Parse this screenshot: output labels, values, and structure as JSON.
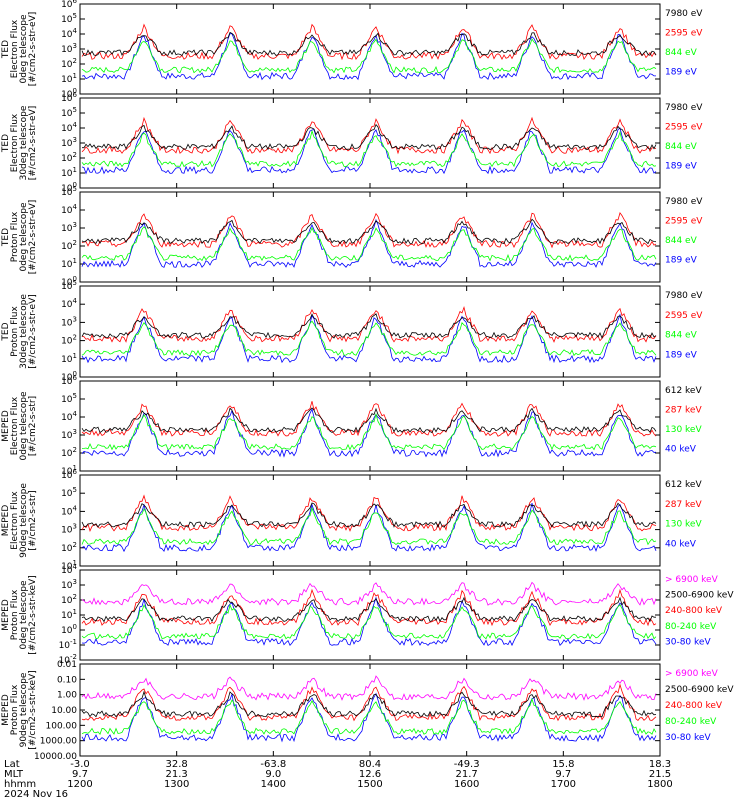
{
  "colors": {
    "blue": "#0000ff",
    "red": "#ff0000",
    "green": "#00ff00",
    "black": "#000000",
    "magenta": "#ff00ff"
  },
  "footer": {
    "rows": [
      {
        "label": "Lat",
        "values": [
          "-3.0",
          "32.8",
          "-63.8",
          "80.4",
          "-49.3",
          "15.8",
          "18.3"
        ]
      },
      {
        "label": "MLT",
        "values": [
          "9.7",
          "21.3",
          "9.0",
          "12.6",
          "21.7",
          "9.7",
          "21.5"
        ]
      },
      {
        "label": "hhmm",
        "values": [
          "1200",
          "1300",
          "1400",
          "1500",
          "1600",
          "1700",
          "1800"
        ]
      }
    ],
    "date": "2024 Nov 16"
  },
  "chart_data": [
    {
      "type": "line",
      "ylabel": [
        "TED",
        "Electron Flux",
        "0deg telescope",
        "[#/cm2-s-str-eV]"
      ],
      "y_scale": "log",
      "ylim": [
        1,
        1000000
      ],
      "yticks": [
        "10^0",
        "10^1",
        "10^2",
        "10^3",
        "10^4",
        "10^5",
        "10^6"
      ],
      "x": [
        "1200",
        "1300",
        "1400",
        "1500",
        "1600",
        "1700",
        "1800"
      ],
      "legend": [
        {
          "name": "7980 eV",
          "color": "#000000"
        },
        {
          "name": "2595 eV",
          "color": "#ff0000"
        },
        {
          "name": "844 eV",
          "color": "#00ff00"
        },
        {
          "name": "189 eV",
          "color": "#0000ff"
        }
      ]
    },
    {
      "type": "line",
      "ylabel": [
        "TED",
        "Electron Flux",
        "30deg telescope",
        "[#/cm2-s-str-eV]"
      ],
      "y_scale": "log",
      "ylim": [
        1,
        1000000
      ],
      "yticks": [
        "10^0",
        "10^1",
        "10^2",
        "10^3",
        "10^4",
        "10^5",
        "10^6"
      ],
      "x": [
        "1200",
        "1300",
        "1400",
        "1500",
        "1600",
        "1700",
        "1800"
      ],
      "legend": [
        {
          "name": "7980 eV",
          "color": "#000000"
        },
        {
          "name": "2595 eV",
          "color": "#ff0000"
        },
        {
          "name": "844 eV",
          "color": "#00ff00"
        },
        {
          "name": "189 eV",
          "color": "#0000ff"
        }
      ]
    },
    {
      "type": "line",
      "ylabel": [
        "TED",
        "Proton Flux",
        "0deg telescope",
        "[#/cm2-s-str-eV]"
      ],
      "y_scale": "log",
      "ylim": [
        1,
        100000
      ],
      "yticks": [
        "10^0",
        "10^1",
        "10^2",
        "10^3",
        "10^4",
        "10^5"
      ],
      "x": [
        "1200",
        "1300",
        "1400",
        "1500",
        "1600",
        "1700",
        "1800"
      ],
      "legend": [
        {
          "name": "7980 eV",
          "color": "#000000"
        },
        {
          "name": "2595 eV",
          "color": "#ff0000"
        },
        {
          "name": "844 eV",
          "color": "#00ff00"
        },
        {
          "name": "189 eV",
          "color": "#0000ff"
        }
      ]
    },
    {
      "type": "line",
      "ylabel": [
        "TED",
        "Proton Flux",
        "30deg telescope",
        "[#/cm2-s-str-eV]"
      ],
      "y_scale": "log",
      "ylim": [
        1,
        100000
      ],
      "yticks": [
        "10^0",
        "10^1",
        "10^2",
        "10^3",
        "10^4",
        "10^5"
      ],
      "x": [
        "1200",
        "1300",
        "1400",
        "1500",
        "1600",
        "1700",
        "1800"
      ],
      "legend": [
        {
          "name": "7980 eV",
          "color": "#000000"
        },
        {
          "name": "2595 eV",
          "color": "#ff0000"
        },
        {
          "name": "844 eV",
          "color": "#00ff00"
        },
        {
          "name": "189 eV",
          "color": "#0000ff"
        }
      ]
    },
    {
      "type": "line",
      "ylabel": [
        "MEPED",
        "Electron Flux",
        "0deg telescope",
        "[#/cm2-s-str]"
      ],
      "y_scale": "log",
      "ylim": [
        10,
        1000000
      ],
      "yticks": [
        "10^1",
        "10^2",
        "10^3",
        "10^4",
        "10^5",
        "10^6"
      ],
      "x": [
        "1200",
        "1300",
        "1400",
        "1500",
        "1600",
        "1700",
        "1800"
      ],
      "legend": [
        {
          "name": "612 keV",
          "color": "#000000"
        },
        {
          "name": "287 keV",
          "color": "#ff0000"
        },
        {
          "name": "130 keV",
          "color": "#00ff00"
        },
        {
          "name": "40 keV",
          "color": "#0000ff"
        }
      ]
    },
    {
      "type": "line",
      "ylabel": [
        "MEPED",
        "Electron Flux",
        "90deg telescope",
        "[#/cm2-s-str]"
      ],
      "y_scale": "log",
      "ylim": [
        10,
        1000000
      ],
      "yticks": [
        "10^1",
        "10^2",
        "10^3",
        "10^4",
        "10^5",
        "10^6"
      ],
      "x": [
        "1200",
        "1300",
        "1400",
        "1500",
        "1600",
        "1700",
        "1800"
      ],
      "legend": [
        {
          "name": "612 keV",
          "color": "#000000"
        },
        {
          "name": "287 keV",
          "color": "#ff0000"
        },
        {
          "name": "130 keV",
          "color": "#00ff00"
        },
        {
          "name": "40 keV",
          "color": "#0000ff"
        }
      ]
    },
    {
      "type": "line",
      "ylabel": [
        "MEPED",
        "Proton Flux",
        "0deg telescope",
        "[#/cm2-s-str-keV]"
      ],
      "y_scale": "log",
      "ylim": [
        0.01,
        10000
      ],
      "yticks": [
        "10^-2",
        "10^-1",
        "10^0",
        "10^1",
        "10^2",
        "10^3",
        "10^4"
      ],
      "x": [
        "1200",
        "1300",
        "1400",
        "1500",
        "1600",
        "1700",
        "1800"
      ],
      "legend": [
        {
          "name": "> 6900 keV",
          "color": "#ff00ff"
        },
        {
          "name": "2500-6900 keV",
          "color": "#000000"
        },
        {
          "name": "240-800 keV",
          "color": "#ff0000"
        },
        {
          "name": "80-240 keV",
          "color": "#00ff00"
        },
        {
          "name": "30-80 keV",
          "color": "#0000ff"
        }
      ]
    },
    {
      "type": "line",
      "ylabel": [
        "MEPED",
        "Proton Flux",
        "90deg telescope",
        "[#/cm2-s-str-keV]"
      ],
      "y_scale": "log",
      "ylim": [
        0.01,
        10000
      ],
      "yticks": [
        "10000.00",
        "1000.00",
        "100.00",
        "10.00",
        "1.00",
        "0.10",
        "0.01"
      ],
      "x": [
        "1200",
        "1300",
        "1400",
        "1500",
        "1600",
        "1700",
        "1800"
      ],
      "legend": [
        {
          "name": "> 6900 keV",
          "color": "#ff00ff"
        },
        {
          "name": "2500-6900 keV",
          "color": "#000000"
        },
        {
          "name": "240-800 keV",
          "color": "#ff0000"
        },
        {
          "name": "80-240 keV",
          "color": "#00ff00"
        },
        {
          "name": "30-80 keV",
          "color": "#0000ff"
        }
      ]
    }
  ]
}
